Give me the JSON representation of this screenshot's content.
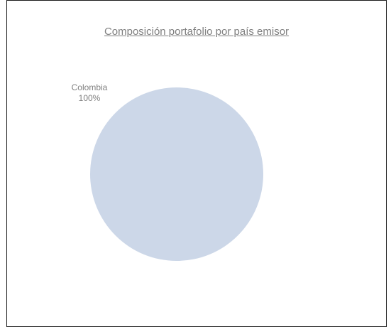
{
  "chart_data": {
    "type": "pie",
    "title": "Composición portafolio por país emisor",
    "categories": [
      "Colombia"
    ],
    "values": [
      100
    ],
    "value_labels": [
      "100%"
    ],
    "colors": [
      "#ccd7e8"
    ],
    "legend": "none"
  }
}
